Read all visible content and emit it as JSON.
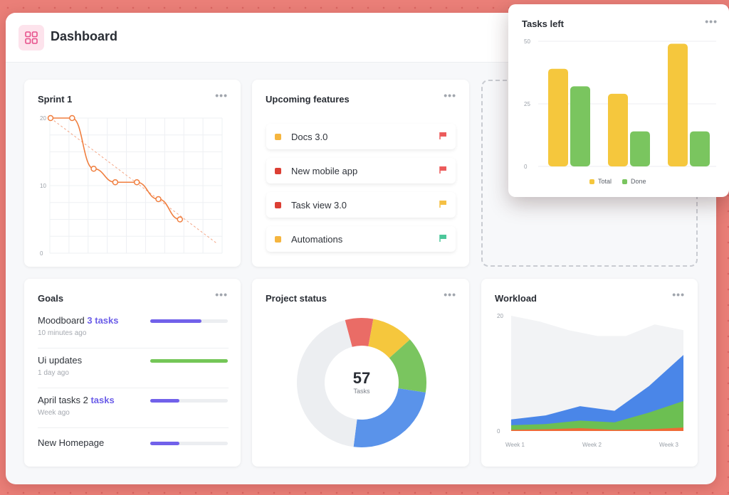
{
  "header": {
    "title": "Dashboard",
    "logo_icon": "dashboard-grid-icon"
  },
  "sprint": {
    "title": "Sprint 1",
    "menu": "•••",
    "chart_data": {
      "type": "line",
      "y_ticks": [
        "20",
        "10",
        "0"
      ],
      "ylim": [
        0,
        20
      ],
      "x": [
        0,
        1,
        2,
        3,
        4,
        5,
        6
      ],
      "values": [
        20,
        20,
        12.5,
        10.5,
        10.5,
        8,
        5
      ],
      "ideal_line": {
        "from": 20,
        "to": 1.5
      },
      "color": "#f07e3e"
    }
  },
  "features": {
    "title": "Upcoming features",
    "menu": "•••",
    "items": [
      {
        "label": "Docs 3.0",
        "dot_color": "#f5b53f",
        "flag_color": "#ec5b5b"
      },
      {
        "label": "New mobile app",
        "dot_color": "#dc3f34",
        "flag_color": "#ec5b5b"
      },
      {
        "label": "Task view 3.0",
        "dot_color": "#dc3f34",
        "flag_color": "#f5c044"
      },
      {
        "label": "Automations",
        "dot_color": "#f5b53f",
        "flag_color": "#4cc79a"
      }
    ]
  },
  "tasks_left": {
    "title": "Tasks left",
    "menu": "•••",
    "chart_data": {
      "type": "bar",
      "y_ticks": [
        "50",
        "25",
        "0"
      ],
      "ylim": [
        0,
        50
      ],
      "groups": 3,
      "series": [
        {
          "name": "Total",
          "values": [
            39,
            29,
            49
          ],
          "color": "#f5c73d"
        },
        {
          "name": "Done",
          "values": [
            32,
            14,
            14
          ],
          "color": "#7ac55f"
        }
      ]
    }
  },
  "goals": {
    "title": "Goals",
    "menu": "•••",
    "items": [
      {
        "name": "Moodboard",
        "accent": "3 tasks",
        "time": "10 minutes ago",
        "progress": 0.66,
        "color": "#7161ea"
      },
      {
        "name": "Ui updates",
        "accent": "",
        "time": "1 day ago",
        "progress": 1.0,
        "color": "#74c657"
      },
      {
        "name": "April tasks 2",
        "accent": "tasks",
        "time": "Week ago",
        "progress": 0.38,
        "color": "#7161ea"
      },
      {
        "name": "New Homepage",
        "accent": "",
        "time": "",
        "progress": 0.38,
        "color": "#7161ea"
      }
    ]
  },
  "project_status": {
    "title": "Project status",
    "menu": "•••",
    "center_value": "57",
    "center_label": "Tasks",
    "chart_data": {
      "type": "pie",
      "slices": [
        {
          "value": 4,
          "color": "#ea6c66"
        },
        {
          "value": 6,
          "color": "#f5c73d"
        },
        {
          "value": 8,
          "color": "#7ac55f"
        },
        {
          "value": 14,
          "color": "#5a93ea"
        },
        {
          "value": 25,
          "color": "#eceef1"
        }
      ]
    }
  },
  "workload": {
    "title": "Workload",
    "menu": "•••",
    "chart_data": {
      "type": "area",
      "y_ticks": [
        "20",
        "0"
      ],
      "ylim": [
        0,
        20
      ],
      "x_labels": [
        "Week 1",
        "Week 2",
        "Week 3"
      ],
      "series": [
        {
          "values": [
            20,
            19,
            17.5,
            16.5,
            16.5,
            18.5,
            17.5
          ],
          "color": "#f2f3f5"
        },
        {
          "values": [
            2,
            2.7,
            4.3,
            3.5,
            7.8,
            13.2
          ],
          "color": "#4a86e8"
        },
        {
          "values": [
            1,
            1.2,
            1.8,
            1.5,
            3.2,
            5.2
          ],
          "color": "#6cbf52"
        },
        {
          "values": [
            0.2,
            0.3,
            0.5,
            0.2,
            0.3,
            0.6
          ],
          "color": "#ef6a36"
        }
      ]
    }
  }
}
